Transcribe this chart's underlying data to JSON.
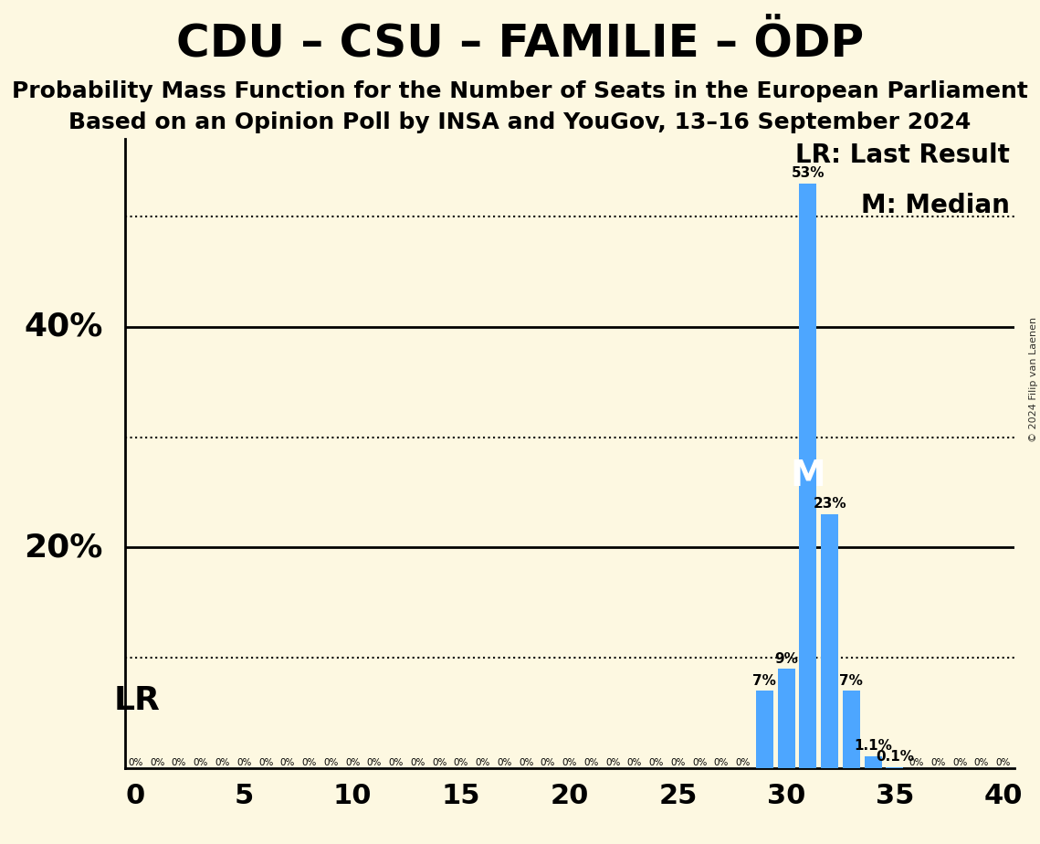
{
  "title": "CDU – CSU – FAMILIE – ÖDP",
  "subtitle1": "Probability Mass Function for the Number of Seats in the European Parliament",
  "subtitle2": "Based on an Opinion Poll by INSA and YouGov, 13–16 September 2024",
  "copyright": "© 2024 Filip van Laenen",
  "legend_lr": "LR: Last Result",
  "legend_m": "M: Median",
  "background_color": "#fdf8e1",
  "bar_color": "#4da6ff",
  "xlim": [
    -0.5,
    40.5
  ],
  "ylim": [
    0,
    0.57
  ],
  "xticks": [
    0,
    5,
    10,
    15,
    20,
    25,
    30,
    35,
    40
  ],
  "ytick_solid": [
    0.2,
    0.4
  ],
  "ytick_dotted": [
    0.1,
    0.3,
    0.5
  ],
  "ytick_labels": {
    "0.20": "20%",
    "0.40": "40%"
  },
  "seats": [
    0,
    1,
    2,
    3,
    4,
    5,
    6,
    7,
    8,
    9,
    10,
    11,
    12,
    13,
    14,
    15,
    16,
    17,
    18,
    19,
    20,
    21,
    22,
    23,
    24,
    25,
    26,
    27,
    28,
    29,
    30,
    31,
    32,
    33,
    34,
    35,
    36,
    37,
    38,
    39,
    40
  ],
  "probabilities": [
    0,
    0,
    0,
    0,
    0,
    0,
    0,
    0,
    0,
    0,
    0,
    0,
    0,
    0,
    0,
    0,
    0,
    0,
    0,
    0,
    0,
    0,
    0,
    0,
    0,
    0,
    0,
    0,
    0,
    0.07,
    0.09,
    0.53,
    0.23,
    0.07,
    0.011,
    0.001,
    0,
    0,
    0,
    0,
    0
  ],
  "bar_labels": {
    "29": "7%",
    "30": "9%",
    "31": "53%",
    "32": "23%",
    "33": "7%",
    "34": "1.1%",
    "35": "0.1%"
  },
  "last_result": 29,
  "median": 31,
  "lr_label": "LR",
  "m_label": "M",
  "title_fontsize": 36,
  "subtitle_fontsize": 18,
  "axis_label_fontsize": 26,
  "bar_label_fontsize": 11,
  "legend_fontsize": 20,
  "tick_fontsize": 22,
  "lr_fontsize": 26,
  "zero_label_fontsize": 7.5
}
